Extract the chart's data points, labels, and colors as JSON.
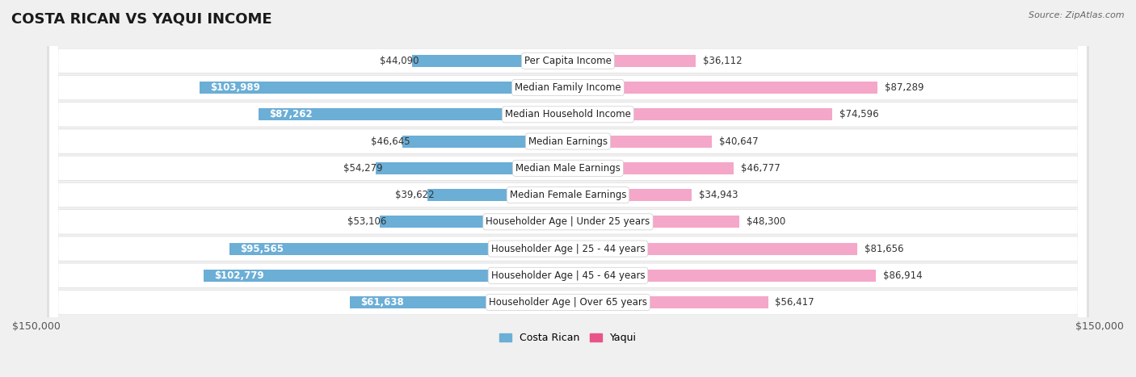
{
  "title": "COSTA RICAN VS YAQUI INCOME",
  "source": "Source: ZipAtlas.com",
  "categories": [
    "Per Capita Income",
    "Median Family Income",
    "Median Household Income",
    "Median Earnings",
    "Median Male Earnings",
    "Median Female Earnings",
    "Householder Age | Under 25 years",
    "Householder Age | 25 - 44 years",
    "Householder Age | 45 - 64 years",
    "Householder Age | Over 65 years"
  ],
  "costa_rican": [
    44090,
    103989,
    87262,
    46645,
    54279,
    39622,
    53106,
    95565,
    102779,
    61638
  ],
  "yaqui": [
    36112,
    87289,
    74596,
    40647,
    46777,
    34943,
    48300,
    81656,
    86914,
    56417
  ],
  "costa_rican_color_strong": "#6baed6",
  "costa_rican_color_light": "#b0cfe8",
  "yaqui_color_strong": "#e8538a",
  "yaqui_color_light": "#f4a7c9",
  "max_value": 150000,
  "bg_color": "#f0f0f0",
  "row_bg_dark": "#e0e0e0",
  "row_bg_light": "#f8f8f8",
  "title_fontsize": 13,
  "label_fontsize": 8.5,
  "value_fontsize": 8.5,
  "bar_height": 0.45,
  "label_threshold": 60000
}
